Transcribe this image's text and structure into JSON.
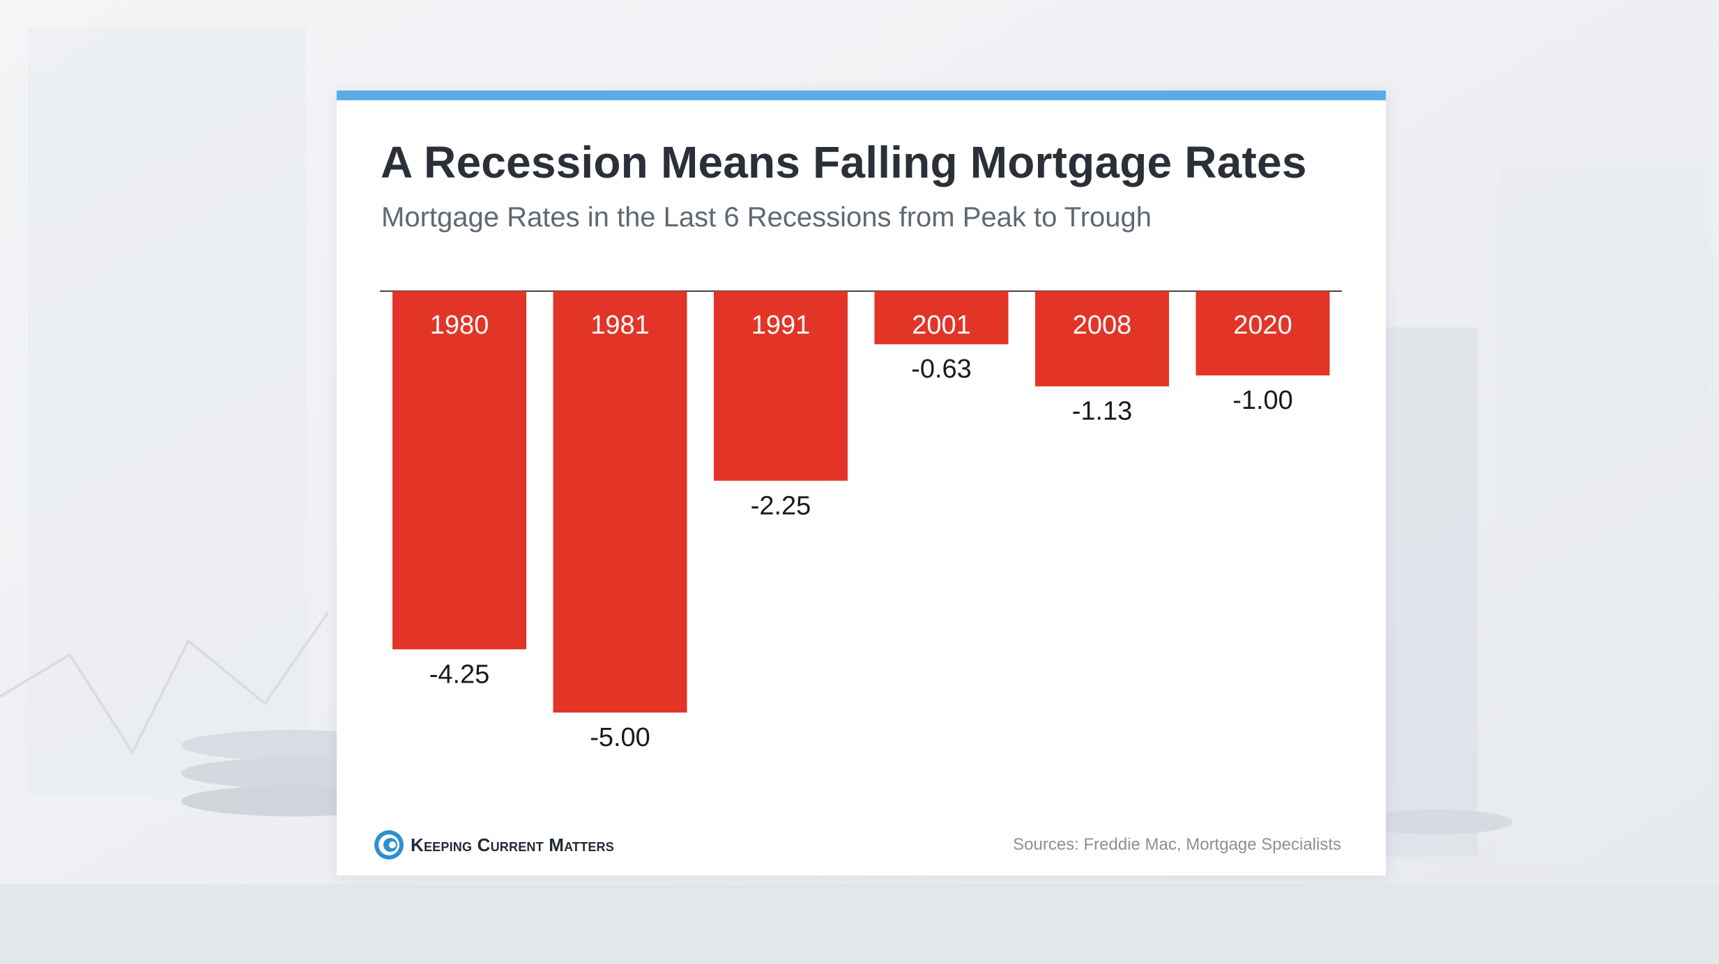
{
  "colors": {
    "accent_bar": "#5aabe6",
    "bar": "#e23527",
    "bar_label": "#ffffff",
    "value_label": "#1a1a1a",
    "baseline": "#444444",
    "logo": "#2e8fd0"
  },
  "header": {
    "title": "A Recession Means Falling Mortgage Rates",
    "subtitle": "Mortgage Rates in the Last 6 Recessions from Peak to Trough"
  },
  "chart_data": {
    "type": "bar",
    "title": "A Recession Means Falling Mortgage Rates",
    "subtitle": "Mortgage Rates in the Last 6 Recessions from Peak to Trough",
    "categories": [
      "1980",
      "1981",
      "1991",
      "2001",
      "2008",
      "2020"
    ],
    "values": [
      -4.25,
      -5.0,
      -2.25,
      -0.63,
      -1.13,
      -1.0
    ],
    "value_labels": [
      "-4.25",
      "-5.00",
      "-2.25",
      "-0.63",
      "-1.13",
      "-1.00"
    ],
    "ylim": [
      -5.0,
      0
    ],
    "grid": false,
    "legend": "none"
  },
  "footer": {
    "logo_icon": "kcm-swirl-icon",
    "logo_text": "Keeping Current Matters",
    "sources": "Sources: Freddie Mac, Mortgage Specialists"
  }
}
